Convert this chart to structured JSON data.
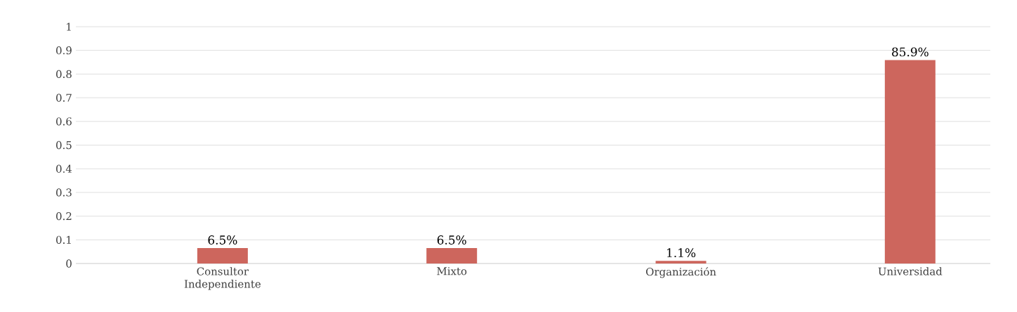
{
  "chart_data": {
    "type": "bar",
    "categories": [
      "Consultor Independiente",
      "Mixto",
      "Organización",
      "Universidad"
    ],
    "values": [
      0.065,
      0.065,
      0.011,
      0.859
    ],
    "value_labels": [
      "6.5%",
      "6.5%",
      "1.1%",
      "85.9%"
    ],
    "color": "#cd665d",
    "ylim": [
      0,
      1
    ],
    "yticks": [
      0,
      0.1,
      0.2,
      0.3,
      0.4,
      0.5,
      0.6,
      0.7,
      0.8,
      0.9,
      1
    ],
    "grid": "y"
  }
}
